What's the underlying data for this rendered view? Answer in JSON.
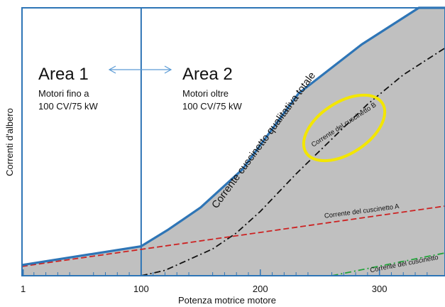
{
  "chart_data": {
    "type": "area",
    "xlabel": "Potenza motrice motore",
    "ylabel": "Correnti d'albero",
    "xlim": [
      0,
      355
    ],
    "ylim": [
      0,
      100
    ],
    "xticks": [
      {
        "value": 1,
        "label": "1"
      },
      {
        "value": 100,
        "label": "100"
      },
      {
        "value": 200,
        "label": "200"
      },
      {
        "value": 300,
        "label": "300"
      }
    ],
    "area_divider_x": 100,
    "areas": [
      {
        "title": "Area 1",
        "line1": "Motori fino a",
        "line2": "100 CV/75 kW"
      },
      {
        "title": "Area 2",
        "line1": "Motori oltre",
        "line2": "100 CV/75 kW"
      }
    ],
    "series": [
      {
        "name": "Corrente cuscinetto qualitativa totale",
        "style": "solid-fill",
        "color": "#2e75b6",
        "fill": "#c0c0c0",
        "x": [
          0,
          100,
          122,
          150,
          185,
          232,
          285,
          333,
          355
        ],
        "y": [
          4,
          11,
          17,
          25.5,
          39.7,
          68,
          86.3,
          100,
          100
        ]
      },
      {
        "name": "Corrente del cuscinetto B",
        "style": "dash-dot",
        "color": "#111111",
        "x": [
          100,
          120,
          140,
          160,
          180,
          200,
          230,
          260,
          290,
          320,
          355
        ],
        "y": [
          0,
          2,
          6,
          10,
          16,
          24,
          38,
          51,
          64,
          75,
          85
        ]
      },
      {
        "name": "Corrente del cuscinetto A",
        "style": "dashed",
        "color": "#cc2222",
        "x": [
          0,
          355
        ],
        "y": [
          3.5,
          26
        ]
      },
      {
        "name": "Corrente del cuscinetto",
        "style": "dash-dot",
        "color": "#22a33a",
        "x": [
          260,
          355
        ],
        "y": [
          0,
          8.5
        ]
      }
    ],
    "highlight": {
      "series": "Corrente del cuscinetto B",
      "color": "#f3e600"
    }
  }
}
